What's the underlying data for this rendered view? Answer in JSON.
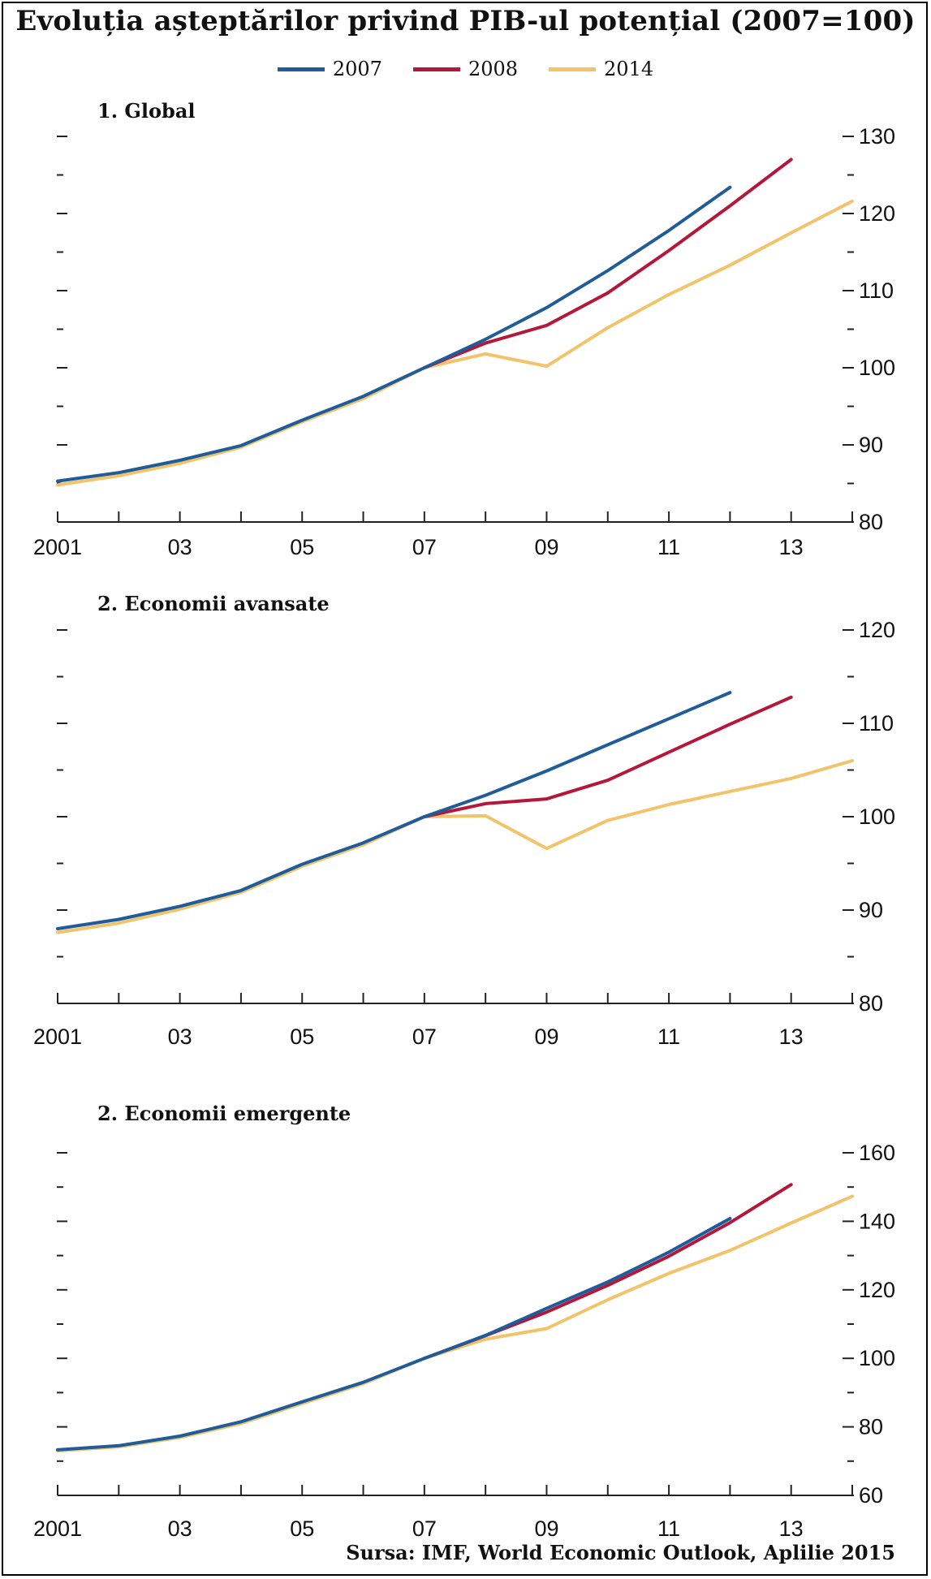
{
  "figure": {
    "title": "Evoluția așteptărilor privind PIB-ul potențial (2007=100)",
    "source": "Sursa: IMF, World Economic Outlook, Aplilie 2015"
  },
  "legend": [
    {
      "label": "2007",
      "color": "#1f5c99"
    },
    {
      "label": "2008",
      "color": "#b5173a"
    },
    {
      "label": "2014",
      "color": "#f3c36a"
    }
  ],
  "x_tick_labels": [
    "2001",
    "03",
    "05",
    "07",
    "09",
    "11",
    "13"
  ],
  "chart_data": [
    {
      "type": "line",
      "title": "1. Global",
      "xlabel": "",
      "ylabel": "",
      "xlim": [
        2001,
        2014
      ],
      "ylim": [
        80,
        130
      ],
      "y_ticks": [
        80,
        90,
        100,
        110,
        120,
        130
      ],
      "y_tick_labels": [
        "80",
        "90",
        "100",
        "110",
        "120",
        "130"
      ],
      "series": [
        {
          "name": "2007",
          "x": [
            2001,
            2002,
            2003,
            2004,
            2005,
            2006,
            2007,
            2008,
            2009,
            2010,
            2011,
            2012
          ],
          "values": [
            85.3,
            86.4,
            88.0,
            89.9,
            93.2,
            96.3,
            100.0,
            103.7,
            107.8,
            112.6,
            117.8,
            123.4
          ]
        },
        {
          "name": "2008",
          "x": [
            2007,
            2008,
            2009,
            2010,
            2011,
            2012,
            2013
          ],
          "values": [
            100.0,
            103.2,
            105.5,
            109.7,
            115.2,
            121.0,
            127.0
          ]
        },
        {
          "name": "2014",
          "x": [
            2001,
            2002,
            2003,
            2004,
            2005,
            2006,
            2007,
            2008,
            2009,
            2010,
            2011,
            2012,
            2013,
            2014
          ],
          "values": [
            84.8,
            86.0,
            87.6,
            89.7,
            93.0,
            96.0,
            100.0,
            101.8,
            100.2,
            105.2,
            109.5,
            113.3,
            117.5,
            121.6
          ]
        }
      ]
    },
    {
      "type": "line",
      "title": "2. Economii avansate",
      "xlabel": "",
      "ylabel": "",
      "xlim": [
        2001,
        2014
      ],
      "ylim": [
        80,
        120
      ],
      "y_ticks": [
        80,
        90,
        100,
        110,
        120
      ],
      "y_tick_labels": [
        "80",
        "90",
        "100",
        "110",
        "120"
      ],
      "series": [
        {
          "name": "2007",
          "x": [
            2001,
            2002,
            2003,
            2004,
            2005,
            2006,
            2007,
            2008,
            2009,
            2010,
            2011,
            2012
          ],
          "values": [
            88.0,
            89.0,
            90.4,
            92.1,
            94.9,
            97.2,
            100.0,
            102.3,
            104.9,
            107.7,
            110.5,
            113.3
          ]
        },
        {
          "name": "2008",
          "x": [
            2007,
            2008,
            2009,
            2010,
            2011,
            2012,
            2013
          ],
          "values": [
            100.0,
            101.4,
            101.9,
            103.9,
            106.9,
            109.9,
            112.8
          ]
        },
        {
          "name": "2014",
          "x": [
            2001,
            2002,
            2003,
            2004,
            2005,
            2006,
            2007,
            2008,
            2009,
            2010,
            2011,
            2012,
            2013,
            2014
          ],
          "values": [
            87.6,
            88.6,
            90.1,
            91.9,
            94.7,
            97.0,
            100.0,
            100.1,
            96.6,
            99.6,
            101.3,
            102.7,
            104.1,
            106.0
          ]
        }
      ]
    },
    {
      "type": "line",
      "title": "2. Economii emergente",
      "xlabel": "",
      "ylabel": "",
      "xlim": [
        2001,
        2014
      ],
      "ylim": [
        60,
        160
      ],
      "y_ticks": [
        60,
        80,
        100,
        120,
        140,
        160
      ],
      "y_tick_labels": [
        "60",
        "80",
        "100",
        "120",
        "140",
        "160"
      ],
      "series": [
        {
          "name": "2007",
          "x": [
            2001,
            2002,
            2003,
            2004,
            2005,
            2006,
            2007,
            2008,
            2009,
            2010,
            2011,
            2012
          ],
          "values": [
            73.3,
            74.5,
            77.3,
            81.5,
            87.3,
            93.0,
            100.0,
            106.7,
            114.6,
            122.3,
            131.0,
            140.8
          ]
        },
        {
          "name": "2008",
          "x": [
            2007,
            2008,
            2009,
            2010,
            2011,
            2012,
            2013
          ],
          "values": [
            100.0,
            106.6,
            113.5,
            121.3,
            129.8,
            139.6,
            150.7
          ]
        },
        {
          "name": "2014",
          "x": [
            2001,
            2002,
            2003,
            2004,
            2005,
            2006,
            2007,
            2008,
            2009,
            2010,
            2011,
            2012,
            2013,
            2014
          ],
          "values": [
            73.0,
            74.2,
            76.9,
            81.0,
            86.8,
            92.6,
            100.0,
            105.6,
            108.7,
            117.1,
            124.8,
            131.5,
            139.5,
            147.3
          ]
        }
      ]
    }
  ]
}
